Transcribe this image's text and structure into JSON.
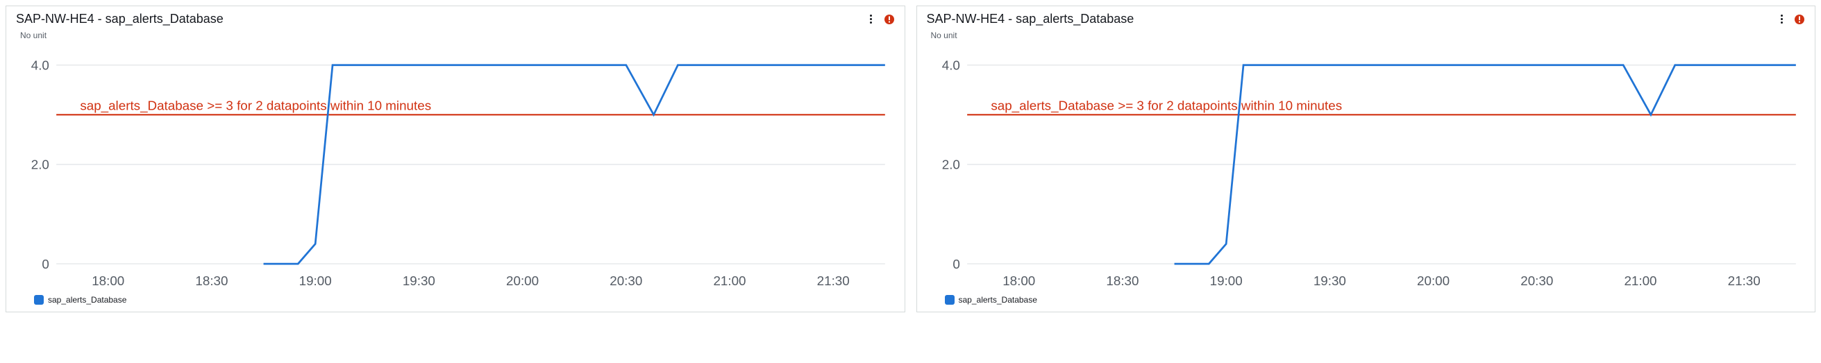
{
  "panels": [
    {
      "title": "SAP-NW-HE4 - sap_alerts_Database",
      "subtitle": "No unit",
      "alert_state": "error",
      "alert_color": "#d13212",
      "chart": {
        "type": "line",
        "background_color": "#ffffff",
        "grid_color": "#e9ebed",
        "axis_text_color": "#545b64",
        "axis_fontsize": 11,
        "x_categories": [
          "18:00",
          "18:30",
          "19:00",
          "19:30",
          "20:00",
          "20:30",
          "21:00",
          "21:30"
        ],
        "x_values": [
          0,
          30,
          60,
          90,
          120,
          150,
          180,
          210
        ],
        "x_domain": [
          -15,
          225
        ],
        "y_ticks": [
          0,
          2.0,
          4.0
        ],
        "y_tick_labels": [
          "0",
          "2.0",
          "4.0"
        ],
        "ylim": [
          0,
          4.3
        ],
        "series": [
          {
            "name": "sap_alerts_Database",
            "color": "#2074d5",
            "line_width": 1.6,
            "points": [
              [
                45,
                0
              ],
              [
                55,
                0
              ],
              [
                60,
                0.4
              ],
              [
                65,
                4
              ],
              [
                150,
                4
              ],
              [
                158,
                3
              ],
              [
                165,
                4
              ],
              [
                225,
                4
              ]
            ]
          }
        ],
        "threshold": {
          "value": 3.0,
          "label": "sap_alerts_Database >= 3 for 2 datapoints within 10 minutes",
          "color": "#d13212",
          "fontsize": 11
        }
      },
      "legend": {
        "label": "sap_alerts_Database",
        "swatch_color": "#2074d5"
      }
    },
    {
      "title": "SAP-NW-HE4 - sap_alerts_Database",
      "subtitle": "No unit",
      "alert_state": "error",
      "alert_color": "#d13212",
      "chart": {
        "type": "line",
        "background_color": "#ffffff",
        "grid_color": "#e9ebed",
        "axis_text_color": "#545b64",
        "axis_fontsize": 11,
        "x_categories": [
          "18:00",
          "18:30",
          "19:00",
          "19:30",
          "20:00",
          "20:30",
          "21:00",
          "21:30"
        ],
        "x_values": [
          0,
          30,
          60,
          90,
          120,
          150,
          180,
          210
        ],
        "x_domain": [
          -15,
          225
        ],
        "y_ticks": [
          0,
          2.0,
          4.0
        ],
        "y_tick_labels": [
          "0",
          "2.0",
          "4.0"
        ],
        "ylim": [
          0,
          4.3
        ],
        "series": [
          {
            "name": "sap_alerts_Database",
            "color": "#2074d5",
            "line_width": 1.6,
            "points": [
              [
                45,
                0
              ],
              [
                55,
                0
              ],
              [
                60,
                0.4
              ],
              [
                65,
                4
              ],
              [
                175,
                4
              ],
              [
                183,
                3
              ],
              [
                190,
                4
              ],
              [
                225,
                4
              ]
            ]
          }
        ],
        "threshold": {
          "value": 3.0,
          "label": "sap_alerts_Database >= 3 for 2 datapoints within 10 minutes",
          "color": "#d13212",
          "fontsize": 11
        }
      },
      "legend": {
        "label": "sap_alerts_Database",
        "swatch_color": "#2074d5"
      }
    }
  ]
}
